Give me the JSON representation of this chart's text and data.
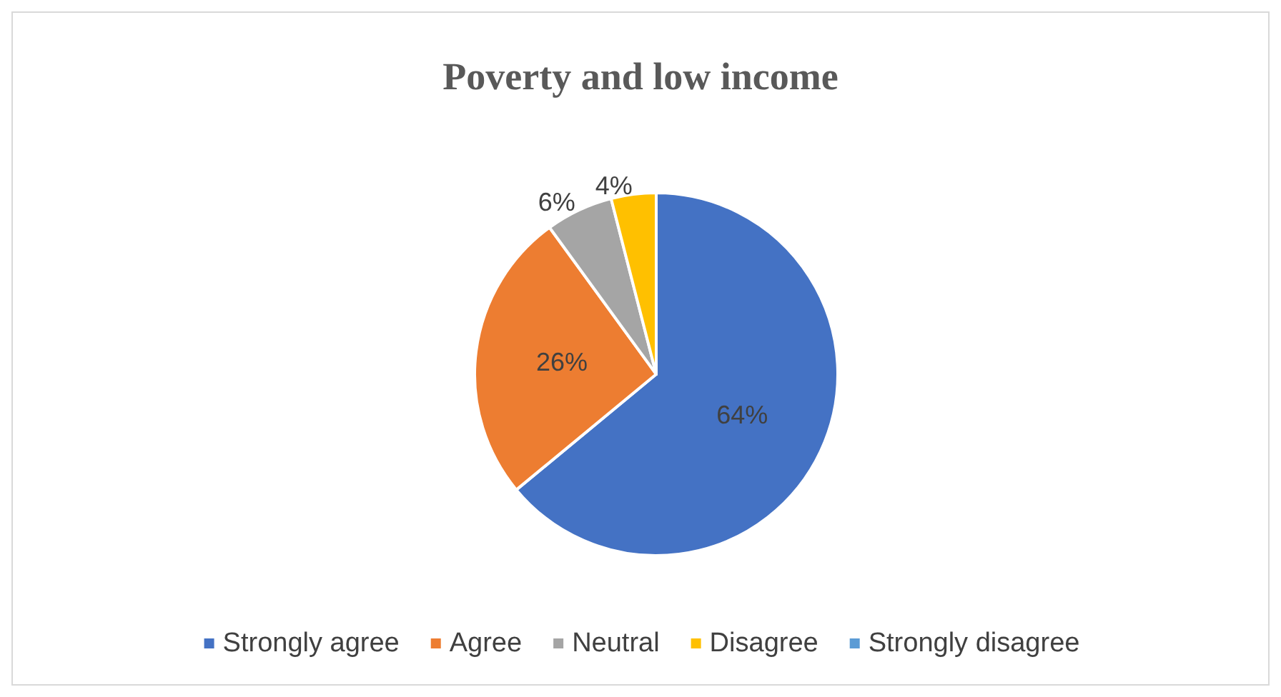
{
  "chart_data": {
    "type": "pie",
    "title": "Poverty and low income",
    "categories": [
      "Strongly agree",
      "Agree",
      "Neutral",
      "Disagree",
      "Strongly disagree"
    ],
    "values": [
      64,
      26,
      6,
      4,
      0
    ],
    "colors": [
      "#4472c4",
      "#ed7d31",
      "#a5a5a5",
      "#ffc000",
      "#5b9bd5"
    ],
    "value_labels": [
      "64%",
      "26%",
      "6%",
      "4%",
      null
    ],
    "legend": "bottom"
  }
}
